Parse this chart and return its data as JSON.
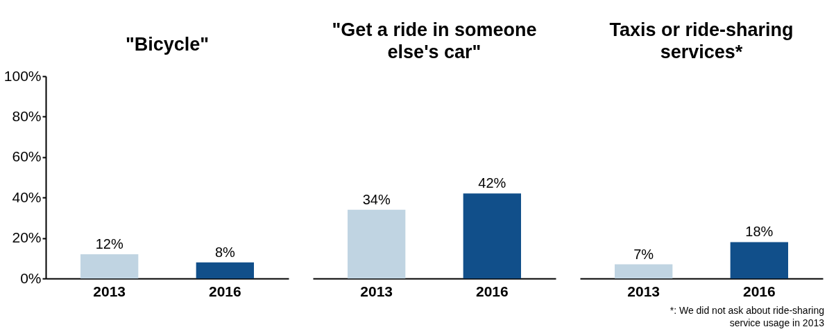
{
  "chart_data": [
    {
      "type": "bar",
      "title": "\"Bicycle\"",
      "categories": [
        "2013",
        "2016"
      ],
      "values": [
        12,
        8
      ],
      "colors": [
        "#c0d4e2",
        "#114f8a"
      ],
      "value_labels": [
        "12%",
        "8%"
      ],
      "ylim": [
        0,
        100
      ],
      "yticks": [
        {
          "value": 0,
          "label": "0%"
        },
        {
          "value": 20,
          "label": "20%"
        },
        {
          "value": 40,
          "label": "40%"
        },
        {
          "value": 60,
          "label": "60%"
        },
        {
          "value": 80,
          "label": "80%"
        },
        {
          "value": 100,
          "label": "100%"
        }
      ],
      "grid": false,
      "legend": false
    },
    {
      "type": "bar",
      "title": "\"Get a ride in someone else's car\"",
      "categories": [
        "2013",
        "2016"
      ],
      "values": [
        34,
        42
      ],
      "colors": [
        "#c0d4e2",
        "#114f8a"
      ],
      "value_labels": [
        "34%",
        "42%"
      ],
      "ylim": [
        0,
        100
      ],
      "tick_labels": "x",
      "grid": false,
      "legend": false
    },
    {
      "type": "bar",
      "title": "Taxis or ride-sharing services*",
      "categories": [
        "2013",
        "2016"
      ],
      "values": [
        7,
        18
      ],
      "colors": [
        "#c0d4e2",
        "#114f8a"
      ],
      "value_labels": [
        "7%",
        "18%"
      ],
      "ylim": [
        0,
        100
      ],
      "tick_labels": "x",
      "grid": false,
      "legend": false,
      "annotations": [
        "*: We did not ask about ride-sharing service usage in 2013"
      ]
    }
  ]
}
